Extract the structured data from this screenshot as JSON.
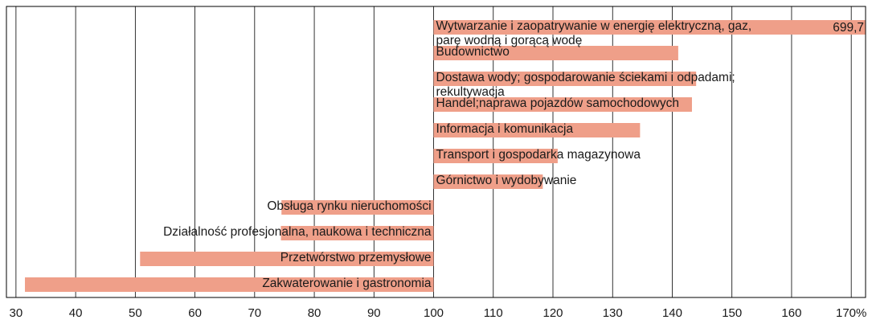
{
  "chart_data": {
    "type": "bar",
    "orientation": "horizontal",
    "baseline": 100,
    "categories": [
      "Wytwarzanie i zaopatrywanie w energię elektryczną, gaz,\nparę wodną i gorącą wodę",
      "Budownictwo",
      "Dostawa wody; gospodarowanie ściekami i odpadami;\nrekultywacja",
      "Handel;naprawa pojazdów samochodowych",
      "Informacja i komunikacja",
      "Transport i gospodarka magazynowa",
      "Górnictwo i wydobywanie",
      "Obsługa rynku nieruchomości",
      "Działalność profesjonalna, naukowa i techniczna",
      "Przetwórstwo przemysłowe",
      "Zakwaterowanie i gastronomia"
    ],
    "values": [
      699.7,
      141,
      144,
      143.3,
      134.6,
      120.8,
      118.3,
      74.5,
      74.4,
      50.8,
      31.5
    ],
    "value_labels": [
      "699,7",
      null,
      null,
      null,
      null,
      null,
      null,
      null,
      null,
      null,
      null
    ],
    "color": "#ef9f89",
    "xlim": [
      28.4,
      172.4
    ],
    "xticks": [
      30,
      40,
      50,
      60,
      70,
      80,
      90,
      100,
      110,
      120,
      130,
      140,
      150,
      160,
      {
        "value": 170,
        "label": "170%"
      }
    ],
    "grid": true
  }
}
